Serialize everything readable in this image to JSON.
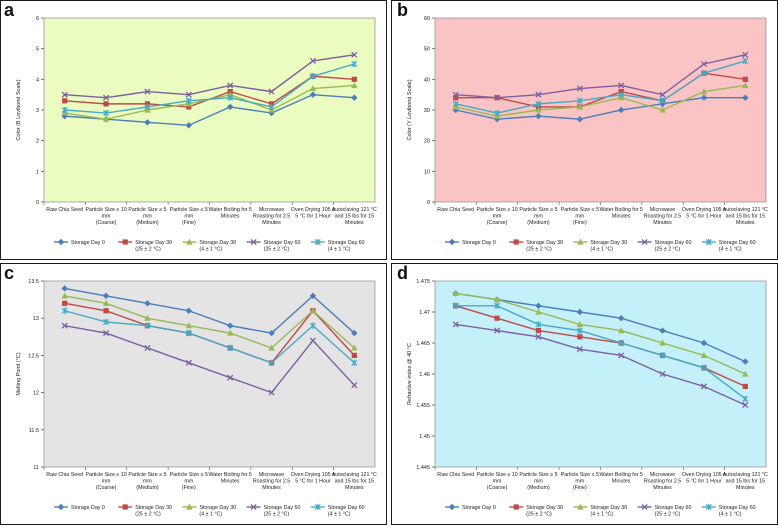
{
  "chart_data": [
    {
      "panel": "a",
      "type": "line",
      "ylabel": "Color (B Lovibond Scale)",
      "ylim": [
        0,
        6
      ],
      "yticks": [
        0,
        1,
        2,
        3,
        4,
        5,
        6
      ],
      "ytick_labels": [
        "0",
        "1",
        "2",
        "3",
        "4",
        "5",
        "6"
      ],
      "background": "#eafcc0",
      "categories": [
        [
          "Raw Chia Seed"
        ],
        [
          "Particle Size ≥ 10",
          "mm",
          "(Coarse)"
        ],
        [
          "Particle Size ≥ 5",
          "mm",
          "(Medium)"
        ],
        [
          "Particle Size ≤ 5",
          "mm",
          "(Fine)"
        ],
        [
          "Water Boiling for 5",
          "Minutes"
        ],
        [
          "Microwave",
          "Roasting for 2.5",
          "Minutes"
        ],
        [
          "Oven Drying 105 ±",
          "5 °C for 1 Hour"
        ],
        [
          "Autoclaving 121 °C",
          "and 15 lbs for 15",
          "Minutes"
        ]
      ],
      "series": [
        {
          "name": [
            "Storage Day 0"
          ],
          "color": "#4a7ebb",
          "marker": "diamond",
          "values": [
            2.8,
            2.7,
            2.6,
            2.5,
            3.1,
            2.9,
            3.5,
            3.4
          ]
        },
        {
          "name": [
            "Storage Day 30",
            "(25 ± 2 °C)"
          ],
          "color": "#be4b48",
          "marker": "square",
          "values": [
            3.3,
            3.2,
            3.2,
            3.1,
            3.6,
            3.2,
            4.1,
            4.0
          ]
        },
        {
          "name": [
            "Storage Day 30",
            "(4 ± 1 °C)"
          ],
          "color": "#98b954",
          "marker": "triangle",
          "values": [
            2.9,
            2.7,
            3.0,
            3.2,
            3.5,
            3.0,
            3.7,
            3.8
          ]
        },
        {
          "name": [
            "Storage Day 60",
            "(25 ± 2 °C)"
          ],
          "color": "#7d60a0",
          "marker": "x",
          "values": [
            3.5,
            3.4,
            3.6,
            3.5,
            3.8,
            3.6,
            4.6,
            4.8
          ]
        },
        {
          "name": [
            "Storage Day 60",
            "(4 ± 1 °C)"
          ],
          "color": "#46aac5",
          "marker": "cross",
          "values": [
            3.0,
            2.9,
            3.1,
            3.3,
            3.4,
            3.1,
            4.1,
            4.5
          ]
        }
      ]
    },
    {
      "panel": "b",
      "type": "line",
      "ylabel": "Color (Y Lovibond Scale)",
      "ylim": [
        0,
        60
      ],
      "yticks": [
        0,
        10,
        20,
        30,
        40,
        50,
        60
      ],
      "ytick_labels": [
        "0",
        "10",
        "20",
        "30",
        "40",
        "50",
        "60"
      ],
      "background": "#fbc4c4",
      "categories": [
        [
          "Raw Chia Seed"
        ],
        [
          "Particle Size ≥ 10",
          "mm",
          "(Coarse)"
        ],
        [
          "Particle Size ≥ 5",
          "mm",
          "(Medium)"
        ],
        [
          "Particle Size ≤ 5",
          "mm",
          "(Fine)"
        ],
        [
          "Water Boiling for 5",
          "Minutes"
        ],
        [
          "Microwave",
          "Roasting for 2.5",
          "Minutes"
        ],
        [
          "Oven Drying 105 ±",
          "5 °C for 1 Hour"
        ],
        [
          "Autoclaving 121 °C",
          "and 15 lbs for 15",
          "Minutes"
        ]
      ],
      "series": [
        {
          "name": [
            "Storage Day 0"
          ],
          "color": "#4a7ebb",
          "marker": "diamond",
          "values": [
            30,
            27,
            28,
            27,
            30,
            32,
            34,
            34
          ]
        },
        {
          "name": [
            "Storage Day 30",
            "(25 ± 2 °C)"
          ],
          "color": "#be4b48",
          "marker": "square",
          "values": [
            34,
            34,
            31,
            31,
            36,
            33,
            42,
            40
          ]
        },
        {
          "name": [
            "Storage Day 30",
            "(4 ± 1 °C)"
          ],
          "color": "#98b954",
          "marker": "triangle",
          "values": [
            31,
            28,
            30,
            31,
            34,
            30,
            36,
            38
          ]
        },
        {
          "name": [
            "Storage Day 60",
            "(25 ± 2 °C)"
          ],
          "color": "#7d60a0",
          "marker": "x",
          "values": [
            35,
            34,
            35,
            37,
            38,
            35,
            45,
            48
          ]
        },
        {
          "name": [
            "Storage Day 60",
            "(4 ± 1 °C)"
          ],
          "color": "#46aac5",
          "marker": "cross",
          "values": [
            32,
            29,
            32,
            33,
            35,
            33,
            42,
            46
          ]
        }
      ]
    },
    {
      "panel": "c",
      "type": "line",
      "ylabel": "Melting Point (°C)",
      "ylim": [
        11,
        13.5
      ],
      "yticks": [
        11,
        11.5,
        12,
        12.5,
        13,
        13.5
      ],
      "ytick_labels": [
        "11",
        "11.5",
        "12",
        "12.5",
        "13",
        "13.5"
      ],
      "background": "#e4e4e4",
      "categories": [
        [
          "Raw Chia Seed"
        ],
        [
          "Particle Size ≥ 10",
          "mm",
          "(Coarse)"
        ],
        [
          "Particle Size ≥ 5",
          "mm",
          "(Medium)"
        ],
        [
          "Particle Size ≤ 5",
          "mm",
          "(Fine)"
        ],
        [
          "Water Boiling for 5",
          "Minutes"
        ],
        [
          "Microwave",
          "Roasting for 2.5",
          "Minutes"
        ],
        [
          "Oven Drying 105 ±",
          "5 °C for 1 Hour"
        ],
        [
          "Autoclaving 121 °C",
          "and 15 lbs for 15",
          "Minutes"
        ]
      ],
      "series": [
        {
          "name": [
            "Storage Day 0"
          ],
          "color": "#4a7ebb",
          "marker": "diamond",
          "values": [
            13.4,
            13.3,
            13.2,
            13.1,
            12.9,
            12.8,
            13.3,
            12.8
          ]
        },
        {
          "name": [
            "Storage Day 30",
            "(25 ± 2 °C)"
          ],
          "color": "#be4b48",
          "marker": "square",
          "values": [
            13.2,
            13.1,
            12.9,
            12.8,
            12.6,
            12.4,
            13.1,
            12.5
          ]
        },
        {
          "name": [
            "Storage Day 30",
            "(4 ± 1 °C)"
          ],
          "color": "#98b954",
          "marker": "triangle",
          "values": [
            13.3,
            13.2,
            13.0,
            12.9,
            12.8,
            12.6,
            13.1,
            12.6
          ]
        },
        {
          "name": [
            "Storage Day 60",
            "(25 ± 2 °C)"
          ],
          "color": "#7d60a0",
          "marker": "x",
          "values": [
            12.9,
            12.8,
            12.6,
            12.4,
            12.2,
            12.0,
            12.7,
            12.1
          ]
        },
        {
          "name": [
            "Storage Day 60",
            "(4 ± 1 °C)"
          ],
          "color": "#46aac5",
          "marker": "cross",
          "values": [
            13.1,
            12.95,
            12.9,
            12.8,
            12.6,
            12.4,
            12.9,
            12.4
          ]
        }
      ]
    },
    {
      "panel": "d",
      "type": "line",
      "ylabel": "Refractive index @ 40 °C",
      "ylim": [
        1.445,
        1.475
      ],
      "yticks": [
        1.445,
        1.45,
        1.455,
        1.46,
        1.465,
        1.47,
        1.475
      ],
      "ytick_labels": [
        "1.445",
        "1.45",
        "1.455",
        "1.46",
        "1.465",
        "1.47",
        "1.475"
      ],
      "background": "#c4f0fa",
      "categories": [
        [
          "Raw Chia Seed"
        ],
        [
          "Particle Size ≥ 10",
          "mm",
          "(Coarse)"
        ],
        [
          "Particle Size ≥ 5",
          "mm",
          "(Medium)"
        ],
        [
          "Particle Size ≤ 5",
          "mm",
          "(Fine)"
        ],
        [
          "Water Boiling for 5",
          "Minutes"
        ],
        [
          "Microwave",
          "Roasting for 2.5",
          "Minutes"
        ],
        [
          "Oven Drying 105 ±",
          "5 °C for 1 Hour"
        ],
        [
          "Autoclaving 121 °C",
          "and 15 lbs for 15",
          "Minutes"
        ]
      ],
      "series": [
        {
          "name": [
            "Storage Day 0"
          ],
          "color": "#4a7ebb",
          "marker": "diamond",
          "values": [
            1.473,
            1.472,
            1.471,
            1.47,
            1.469,
            1.467,
            1.465,
            1.462
          ]
        },
        {
          "name": [
            "Storage Day 30",
            "(25 ± 2 °C)"
          ],
          "color": "#be4b48",
          "marker": "square",
          "values": [
            1.471,
            1.469,
            1.467,
            1.466,
            1.465,
            1.463,
            1.461,
            1.458
          ]
        },
        {
          "name": [
            "Storage Day 30",
            "(4 ± 1 °C)"
          ],
          "color": "#98b954",
          "marker": "triangle",
          "values": [
            1.473,
            1.472,
            1.47,
            1.468,
            1.467,
            1.465,
            1.463,
            1.46
          ]
        },
        {
          "name": [
            "Storage Day 60",
            "(25 ± 2 °C)"
          ],
          "color": "#7d60a0",
          "marker": "x",
          "values": [
            1.468,
            1.467,
            1.466,
            1.464,
            1.463,
            1.46,
            1.458,
            1.455
          ]
        },
        {
          "name": [
            "Storage Day 60",
            "(4 ± 1 °C)"
          ],
          "color": "#46aac5",
          "marker": "cross",
          "values": [
            1.471,
            1.471,
            1.468,
            1.467,
            1.465,
            1.463,
            1.461,
            1.456
          ]
        }
      ]
    }
  ]
}
